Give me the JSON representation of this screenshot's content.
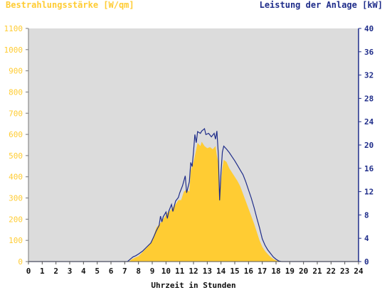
{
  "header": {
    "left_title": "Bestrahlungsstärke [W/qm]",
    "right_title": "Leistung der Anlage [kW]"
  },
  "chart_data": {
    "type": "area",
    "xlabel": "Uhrzeit in Stunden",
    "xlim": [
      0,
      24
    ],
    "x_ticks": [
      "0",
      "1",
      "2",
      "3",
      "4",
      "5",
      "6",
      "7",
      "8",
      "9",
      "10",
      "11",
      "12",
      "13",
      "14",
      "15",
      "16",
      "17",
      "18",
      "19",
      "20",
      "21",
      "22",
      "23",
      "24"
    ],
    "y_left": {
      "label": "Bestrahlungsstärke [W/qm]",
      "lim": [
        0,
        1100
      ],
      "ticks": [
        "0",
        "100",
        "200",
        "300",
        "400",
        "500",
        "600",
        "700",
        "800",
        "900",
        "1000",
        "1100"
      ],
      "color": "#ffcc33"
    },
    "y_right": {
      "label": "Leistung der Anlage [kW]",
      "lim": [
        0,
        40
      ],
      "ticks": [
        "0",
        "4",
        "8",
        "12",
        "16",
        "20",
        "24",
        "28",
        "32",
        "36",
        "40"
      ],
      "color": "#1f2d8a"
    },
    "grid": false,
    "plot_background": "#dcdcdc",
    "series": [
      {
        "axis": "left",
        "style": "filled-area",
        "color": "#ffcc33",
        "points": [
          [
            0,
            0
          ],
          [
            7.3,
            0
          ],
          [
            7.5,
            10
          ],
          [
            7.8,
            20
          ],
          [
            8.0,
            25
          ],
          [
            8.3,
            45
          ],
          [
            8.6,
            65
          ],
          [
            8.9,
            90
          ],
          [
            9.1,
            120
          ],
          [
            9.3,
            160
          ],
          [
            9.5,
            175
          ],
          [
            9.7,
            190
          ],
          [
            9.9,
            210
          ],
          [
            10.1,
            230
          ],
          [
            10.3,
            240
          ],
          [
            10.5,
            255
          ],
          [
            10.7,
            270
          ],
          [
            10.9,
            290
          ],
          [
            11.1,
            290
          ],
          [
            11.3,
            330
          ],
          [
            11.5,
            340
          ],
          [
            11.7,
            330
          ],
          [
            11.8,
            430
          ],
          [
            12.0,
            470
          ],
          [
            12.1,
            500
          ],
          [
            12.3,
            560
          ],
          [
            12.5,
            545
          ],
          [
            12.6,
            565
          ],
          [
            12.8,
            545
          ],
          [
            13.0,
            535
          ],
          [
            13.2,
            540
          ],
          [
            13.4,
            530
          ],
          [
            13.6,
            545
          ],
          [
            13.7,
            500
          ],
          [
            13.8,
            470
          ],
          [
            13.9,
            310
          ],
          [
            14.0,
            380
          ],
          [
            14.1,
            440
          ],
          [
            14.2,
            480
          ],
          [
            14.4,
            470
          ],
          [
            14.6,
            440
          ],
          [
            14.8,
            420
          ],
          [
            15.0,
            400
          ],
          [
            15.2,
            380
          ],
          [
            15.4,
            355
          ],
          [
            15.6,
            320
          ],
          [
            15.8,
            285
          ],
          [
            16.0,
            250
          ],
          [
            16.2,
            215
          ],
          [
            16.4,
            180
          ],
          [
            16.6,
            140
          ],
          [
            16.8,
            100
          ],
          [
            17.0,
            70
          ],
          [
            17.2,
            50
          ],
          [
            17.4,
            35
          ],
          [
            17.6,
            22
          ],
          [
            17.8,
            12
          ],
          [
            18.0,
            5
          ],
          [
            18.2,
            2
          ],
          [
            18.4,
            0
          ],
          [
            24,
            0
          ]
        ]
      },
      {
        "axis": "right",
        "style": "line",
        "color": "#1f2d8a",
        "points": [
          [
            0,
            0
          ],
          [
            7.2,
            0
          ],
          [
            7.4,
            0.4
          ],
          [
            7.6,
            0.8
          ],
          [
            7.8,
            1.0
          ],
          [
            8.0,
            1.3
          ],
          [
            8.3,
            1.8
          ],
          [
            8.6,
            2.5
          ],
          [
            8.9,
            3.2
          ],
          [
            9.1,
            4.2
          ],
          [
            9.3,
            5.3
          ],
          [
            9.5,
            6.2
          ],
          [
            9.6,
            7.8
          ],
          [
            9.7,
            6.8
          ],
          [
            9.8,
            7.7
          ],
          [
            10.0,
            8.5
          ],
          [
            10.1,
            7.4
          ],
          [
            10.2,
            8.6
          ],
          [
            10.4,
            9.8
          ],
          [
            10.5,
            8.6
          ],
          [
            10.7,
            10.4
          ],
          [
            10.9,
            11.0
          ],
          [
            11.0,
            11.8
          ],
          [
            11.2,
            13.0
          ],
          [
            11.4,
            14.7
          ],
          [
            11.5,
            11.8
          ],
          [
            11.7,
            13.7
          ],
          [
            11.8,
            17.0
          ],
          [
            11.9,
            16.3
          ],
          [
            12.0,
            18.8
          ],
          [
            12.1,
            21.8
          ],
          [
            12.2,
            20.4
          ],
          [
            12.3,
            22.3
          ],
          [
            12.5,
            22.0
          ],
          [
            12.6,
            22.4
          ],
          [
            12.8,
            22.8
          ],
          [
            12.9,
            21.8
          ],
          [
            13.1,
            22.0
          ],
          [
            13.3,
            21.4
          ],
          [
            13.5,
            22.0
          ],
          [
            13.6,
            21.0
          ],
          [
            13.7,
            22.4
          ],
          [
            13.8,
            18.6
          ],
          [
            13.9,
            10.5
          ],
          [
            14.0,
            15.3
          ],
          [
            14.1,
            18.8
          ],
          [
            14.2,
            19.8
          ],
          [
            14.4,
            19.3
          ],
          [
            14.6,
            18.7
          ],
          [
            14.8,
            18.0
          ],
          [
            15.0,
            17.3
          ],
          [
            15.2,
            16.5
          ],
          [
            15.4,
            15.7
          ],
          [
            15.6,
            14.9
          ],
          [
            15.8,
            13.7
          ],
          [
            16.0,
            12.3
          ],
          [
            16.2,
            10.9
          ],
          [
            16.4,
            9.3
          ],
          [
            16.6,
            7.5
          ],
          [
            16.8,
            5.8
          ],
          [
            17.0,
            3.9
          ],
          [
            17.2,
            2.8
          ],
          [
            17.4,
            2.0
          ],
          [
            17.6,
            1.4
          ],
          [
            17.8,
            0.8
          ],
          [
            18.0,
            0.4
          ],
          [
            18.2,
            0.1
          ],
          [
            18.4,
            0
          ],
          [
            24,
            0
          ]
        ]
      }
    ]
  }
}
